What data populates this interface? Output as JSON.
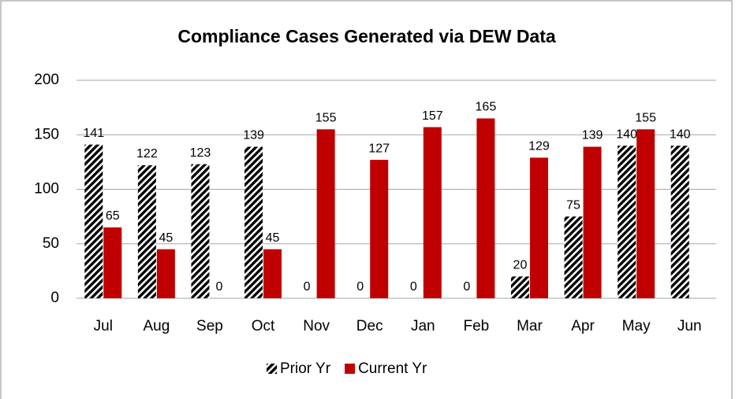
{
  "chart_data": {
    "type": "bar",
    "title": "Compliance Cases Generated via DEW Data",
    "categories": [
      "Jul",
      "Aug",
      "Sep",
      "Oct",
      "Nov",
      "Dec",
      "Jan",
      "Feb",
      "Mar",
      "Apr",
      "May",
      "Jun"
    ],
    "series": [
      {
        "name": "Prior Yr",
        "color": "#000000",
        "pattern": "diagonal-hatch",
        "values": [
          141,
          122,
          123,
          139,
          0,
          0,
          0,
          0,
          20,
          75,
          140,
          140
        ]
      },
      {
        "name": "Current Yr",
        "color": "#c00000",
        "values": [
          65,
          45,
          0,
          45,
          155,
          127,
          157,
          165,
          129,
          139,
          155,
          null
        ]
      }
    ],
    "ylim": [
      0,
      200
    ],
    "yticks": [
      0,
      50,
      100,
      150,
      200
    ],
    "grid": true,
    "legend": "bottom"
  }
}
